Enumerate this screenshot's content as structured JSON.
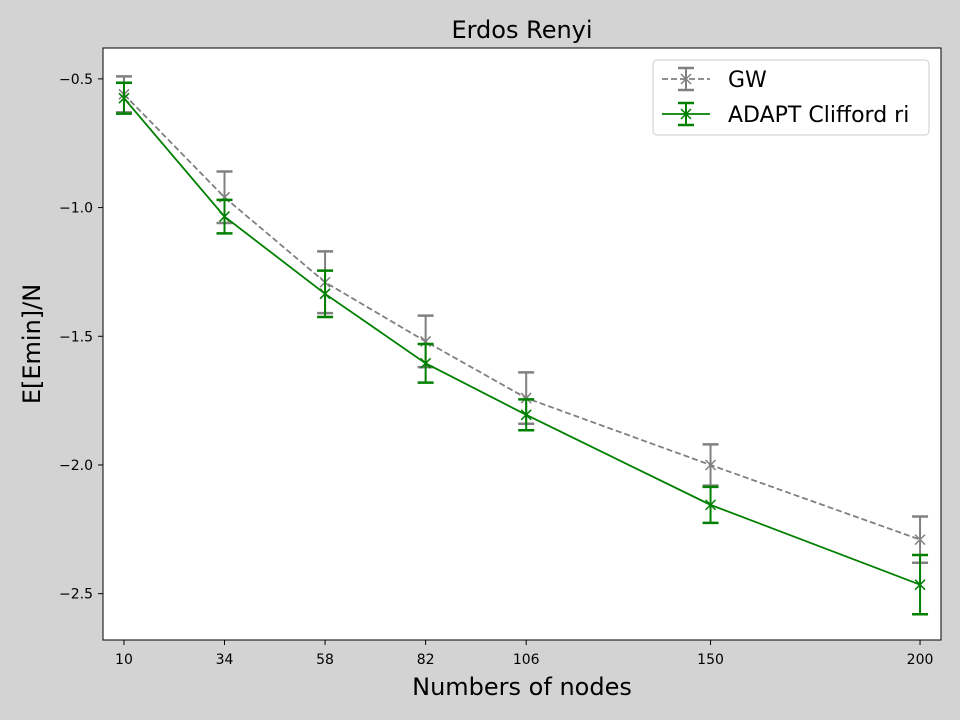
{
  "chart_data": {
    "type": "line",
    "title": "Erdos Renyi",
    "xlabel": "Numbers of nodes",
    "ylabel": "E[Emin]/N",
    "x": [
      10,
      34,
      58,
      82,
      106,
      150,
      200
    ],
    "x_tick_labels": [
      "10",
      "34",
      "58",
      "82",
      "106",
      "150",
      "200"
    ],
    "y_ticks": [
      -0.5,
      -1.0,
      -1.5,
      -2.0,
      -2.5
    ],
    "y_tick_labels": [
      "−0.5",
      "−1.0",
      "−1.5",
      "−2.0",
      "−2.5"
    ],
    "xlim": [
      5,
      205
    ],
    "ylim": [
      -2.68,
      -0.38
    ],
    "grid": false,
    "legend_position": "top-right",
    "series": [
      {
        "name": "GW",
        "color": "#808080",
        "linestyle": "dashed",
        "marker": "x",
        "y": [
          -0.56,
          -0.96,
          -1.29,
          -1.52,
          -1.74,
          -2.0,
          -2.29
        ],
        "err": [
          0.07,
          0.1,
          0.12,
          0.1,
          0.1,
          0.08,
          0.09
        ]
      },
      {
        "name": "ADAPT Clifford ri",
        "color": "#008000",
        "linestyle": "solid",
        "marker": "x",
        "y": [
          -0.575,
          -1.035,
          -1.335,
          -1.605,
          -1.805,
          -2.155,
          -2.465
        ],
        "err": [
          0.06,
          0.065,
          0.09,
          0.075,
          0.06,
          0.07,
          0.115
        ]
      }
    ]
  }
}
